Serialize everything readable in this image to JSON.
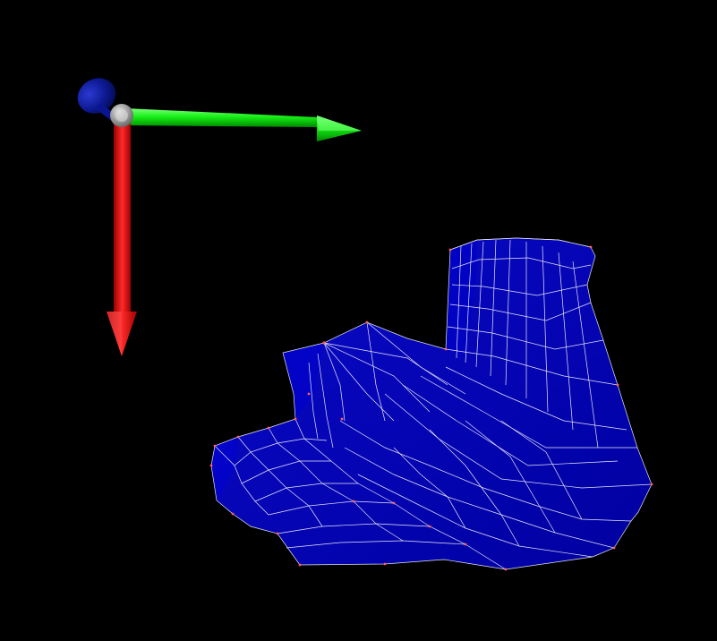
{
  "viewer": {
    "background_color": "#000000"
  },
  "axes_gizmo": {
    "x_axis": {
      "color": "#ff0000",
      "icon": "x-axis-arrow-icon"
    },
    "y_axis": {
      "color": "#00ff00",
      "icon": "y-axis-arrow-icon"
    },
    "z_axis": {
      "color": "#0a0a8a",
      "icon": "z-axis-arrow-icon"
    },
    "origin": {
      "color": "#a0a0a0",
      "icon": "origin-sphere-icon"
    }
  },
  "mesh": {
    "face_color": "#0000b4",
    "edge_color": "#ffffff",
    "vertex_color": "#ff4040",
    "render_mode": "wireframe-over-shaded"
  }
}
